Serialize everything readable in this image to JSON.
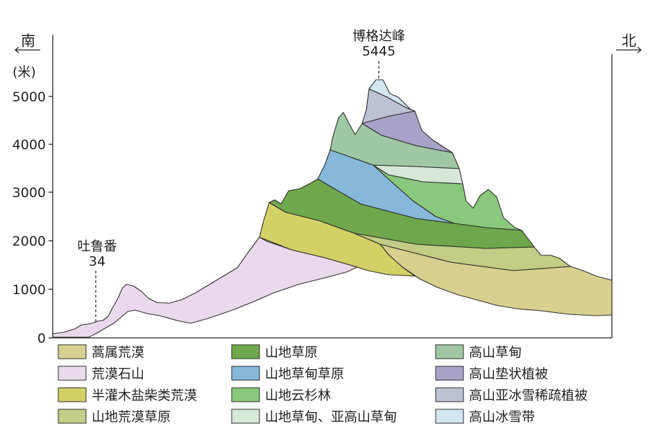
{
  "directions": {
    "south": "南",
    "north": "北"
  },
  "unit": "(米)",
  "y_ticks": [
    "5000",
    "4000",
    "3000",
    "2000",
    "1000",
    "0"
  ],
  "places": {
    "peak": {
      "name": "博格达峰",
      "elevation": "5445"
    },
    "turpan": {
      "name": "吐鲁番",
      "elevation": "34"
    }
  },
  "legend": [
    {
      "key": "desert-artemisia",
      "label": "蒿属荒漠",
      "color": "#d8d08f"
    },
    {
      "key": "desert-rock",
      "label": "荒漠石山",
      "color": "#ead9ec"
    },
    {
      "key": "shrub-desert",
      "label": "半灌木盐柴类荒漠",
      "color": "#d3d066"
    },
    {
      "key": "desert-steppe",
      "label": "山地荒漠草原",
      "color": "#c3cd86"
    },
    {
      "key": "steppe",
      "label": "山地草原",
      "color": "#6fa84c"
    },
    {
      "key": "meadow-steppe",
      "label": "山地草甸草原",
      "color": "#86b8d9"
    },
    {
      "key": "spruce-forest",
      "label": "山地云杉林",
      "color": "#8ac97d"
    },
    {
      "key": "subalpine-meadow",
      "label": "山地草甸、亚高山草甸",
      "color": "#d7e8d9"
    },
    {
      "key": "alpine-meadow",
      "label": "高山草甸",
      "color": "#9fc7a4"
    },
    {
      "key": "alpine-cushion",
      "label": "高山垫状植被",
      "color": "#a9a2c8"
    },
    {
      "key": "subnival",
      "label": "高山亚冰雪稀疏植被",
      "color": "#bcc2d4"
    },
    {
      "key": "nival",
      "label": "高山冰雪带",
      "color": "#d4e7f1"
    }
  ]
}
